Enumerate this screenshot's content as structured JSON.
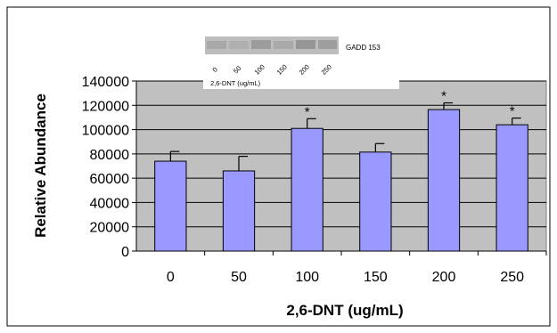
{
  "chart_data": {
    "type": "bar",
    "categories": [
      "0",
      "50",
      "100",
      "150",
      "200",
      "250"
    ],
    "values": [
      74000,
      66000,
      101000,
      81500,
      116500,
      104000
    ],
    "errors": [
      8000,
      12000,
      8000,
      7000,
      5500,
      5500
    ],
    "significance": [
      "",
      "",
      "*",
      "",
      "*",
      "*"
    ],
    "xlabel": "2,6-DNT (ug/mL)",
    "ylabel": "Relative Abundance",
    "ylim": [
      0,
      140000
    ],
    "yticks": [
      "0",
      "20000",
      "40000",
      "60000",
      "80000",
      "100000",
      "120000",
      "140000"
    ],
    "grid": true,
    "colors": {
      "bar": "#9999ff",
      "plot_bg": "#c0c0c0",
      "frame": "#000000"
    }
  },
  "inset": {
    "band_label": "GADD 153",
    "lane_labels": [
      "0",
      "50",
      "100",
      "150",
      "200",
      "250"
    ],
    "axis_label": "2,6-DNT  (ug/mL)"
  }
}
